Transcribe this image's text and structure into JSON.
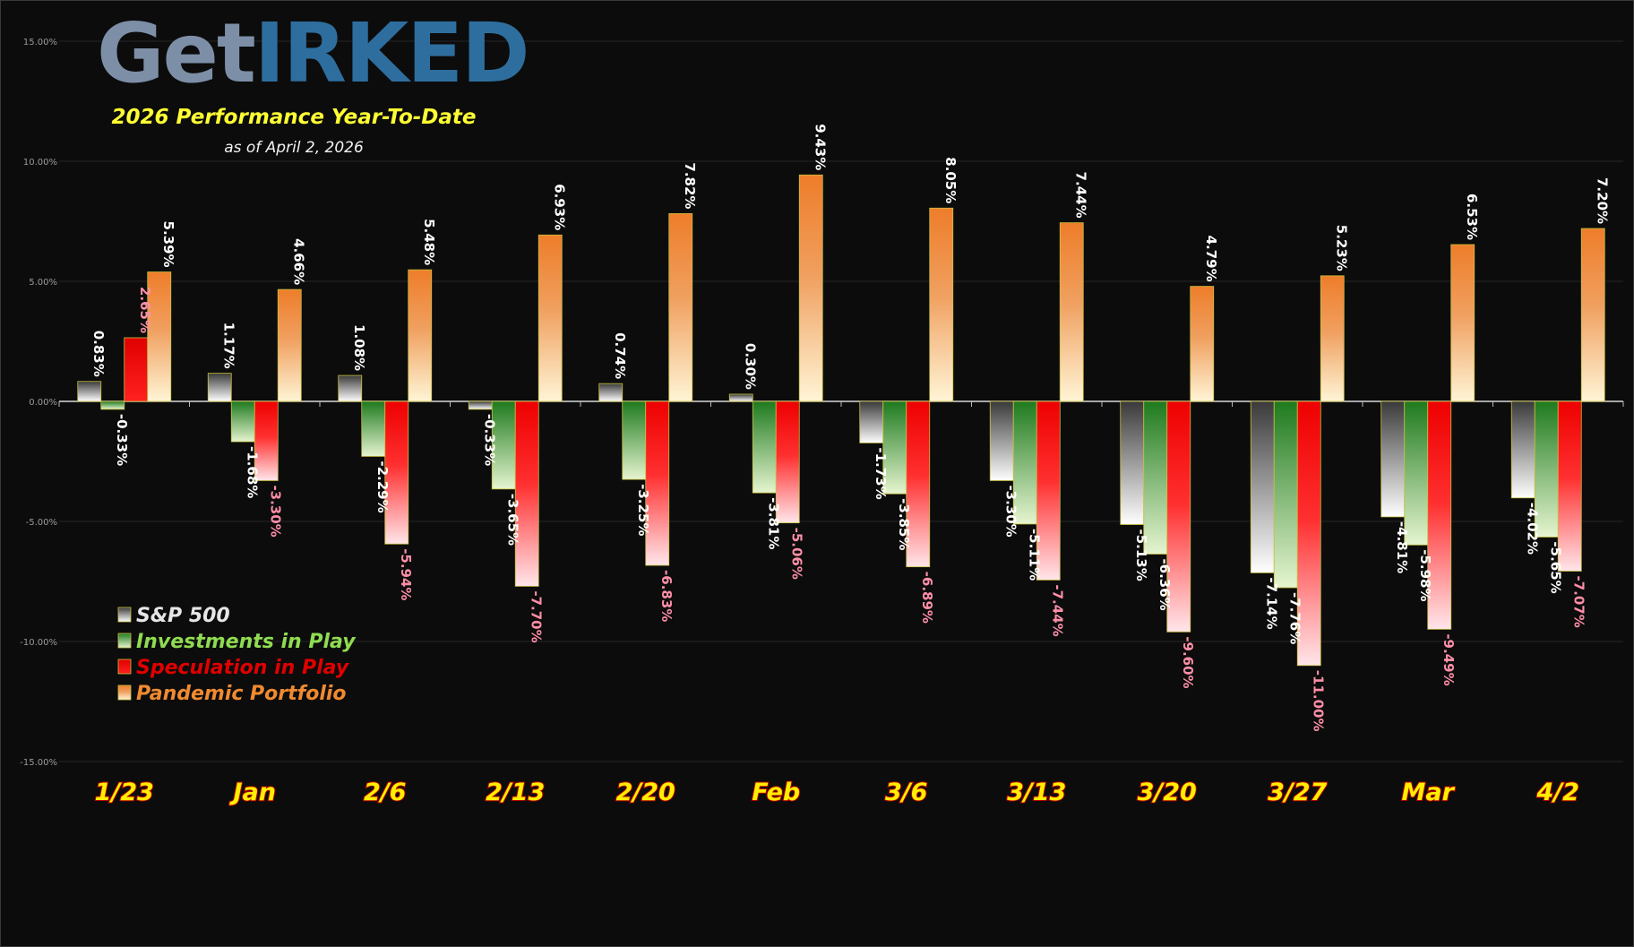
{
  "logo": {
    "text": "GetIRKED",
    "part1": "Get",
    "part2": "IRK",
    "part3": "ED"
  },
  "subtitle": "2026 Performance Year-To-Date",
  "as_of": "as of April 2, 2026",
  "colors": {
    "sp500": "#8a8a8a",
    "investments": "#5fb83a",
    "speculation": "#e00000",
    "pandemic": "#f08a30",
    "axis_text": "#9a9a9a",
    "category_text": "#ffee00"
  },
  "chart_data": {
    "type": "bar",
    "categories": [
      "1/23",
      "Jan",
      "2/6",
      "2/13",
      "2/20",
      "Feb",
      "3/6",
      "3/13",
      "3/20",
      "3/27",
      "Mar",
      "4/2"
    ],
    "series": [
      {
        "name": "S&P 500",
        "key": "sp500",
        "values": [
          0.83,
          1.17,
          1.08,
          -0.33,
          0.74,
          0.3,
          -1.73,
          -3.3,
          -5.13,
          -7.14,
          -4.81,
          -4.02
        ],
        "labels": [
          "0.83%",
          "1.17%",
          "1.08%",
          "-0.33%",
          "0.74%",
          "0.30%",
          "-1.73%",
          "-3.30%",
          "-5.13%",
          "-7.14%",
          "-4.81%",
          "-4.02%"
        ]
      },
      {
        "name": "Investments in Play",
        "key": "investments",
        "values": [
          -0.33,
          -1.68,
          -2.29,
          -3.65,
          -3.25,
          -3.81,
          -3.85,
          -5.11,
          -6.36,
          -7.76,
          -5.98,
          -5.65
        ],
        "labels": [
          "-0.33%",
          "-1.68%",
          "-2.29%",
          "-3.65%",
          "-3.25%",
          "-3.81%",
          "-3.85%",
          "-5.11%",
          "-6.36%",
          "-7.76%",
          "-5.98%",
          "-5.65%"
        ]
      },
      {
        "name": "Speculation in Play",
        "key": "speculation",
        "values": [
          2.65,
          -3.3,
          -5.94,
          -7.7,
          -6.83,
          -5.06,
          -6.89,
          -7.44,
          -9.6,
          -11.0,
          -9.49,
          -7.07
        ],
        "labels": [
          "2.65%",
          "-3.30%",
          "-5.94%",
          "-7.70%",
          "-6.83%",
          "-5.06%",
          "-6.89%",
          "-7.44%",
          "-9.60%",
          "-11.00%",
          "-9.49%",
          "-7.07%"
        ]
      },
      {
        "name": "Pandemic Portfolio",
        "key": "pandemic",
        "values": [
          5.39,
          4.66,
          5.48,
          6.93,
          7.82,
          9.43,
          8.05,
          7.44,
          4.79,
          5.23,
          6.53,
          7.2
        ],
        "labels": [
          "5.39%",
          "4.66%",
          "5.48%",
          "6.93%",
          "7.82%",
          "9.43%",
          "8.05%",
          "7.44%",
          "4.79%",
          "5.23%",
          "6.53%",
          "7.20%"
        ]
      }
    ],
    "ylim": [
      -15,
      15
    ],
    "yticks": [
      15,
      10,
      5,
      0,
      -5,
      -10,
      -15
    ],
    "ytick_labels": [
      "15.00%",
      "10.00%",
      "5.00%",
      "0.00%",
      "-5.00%",
      "-10.00%",
      "-15.00%"
    ],
    "grid": true,
    "legend_position": "bottom-left",
    "title": "",
    "xlabel": "",
    "ylabel": ""
  }
}
